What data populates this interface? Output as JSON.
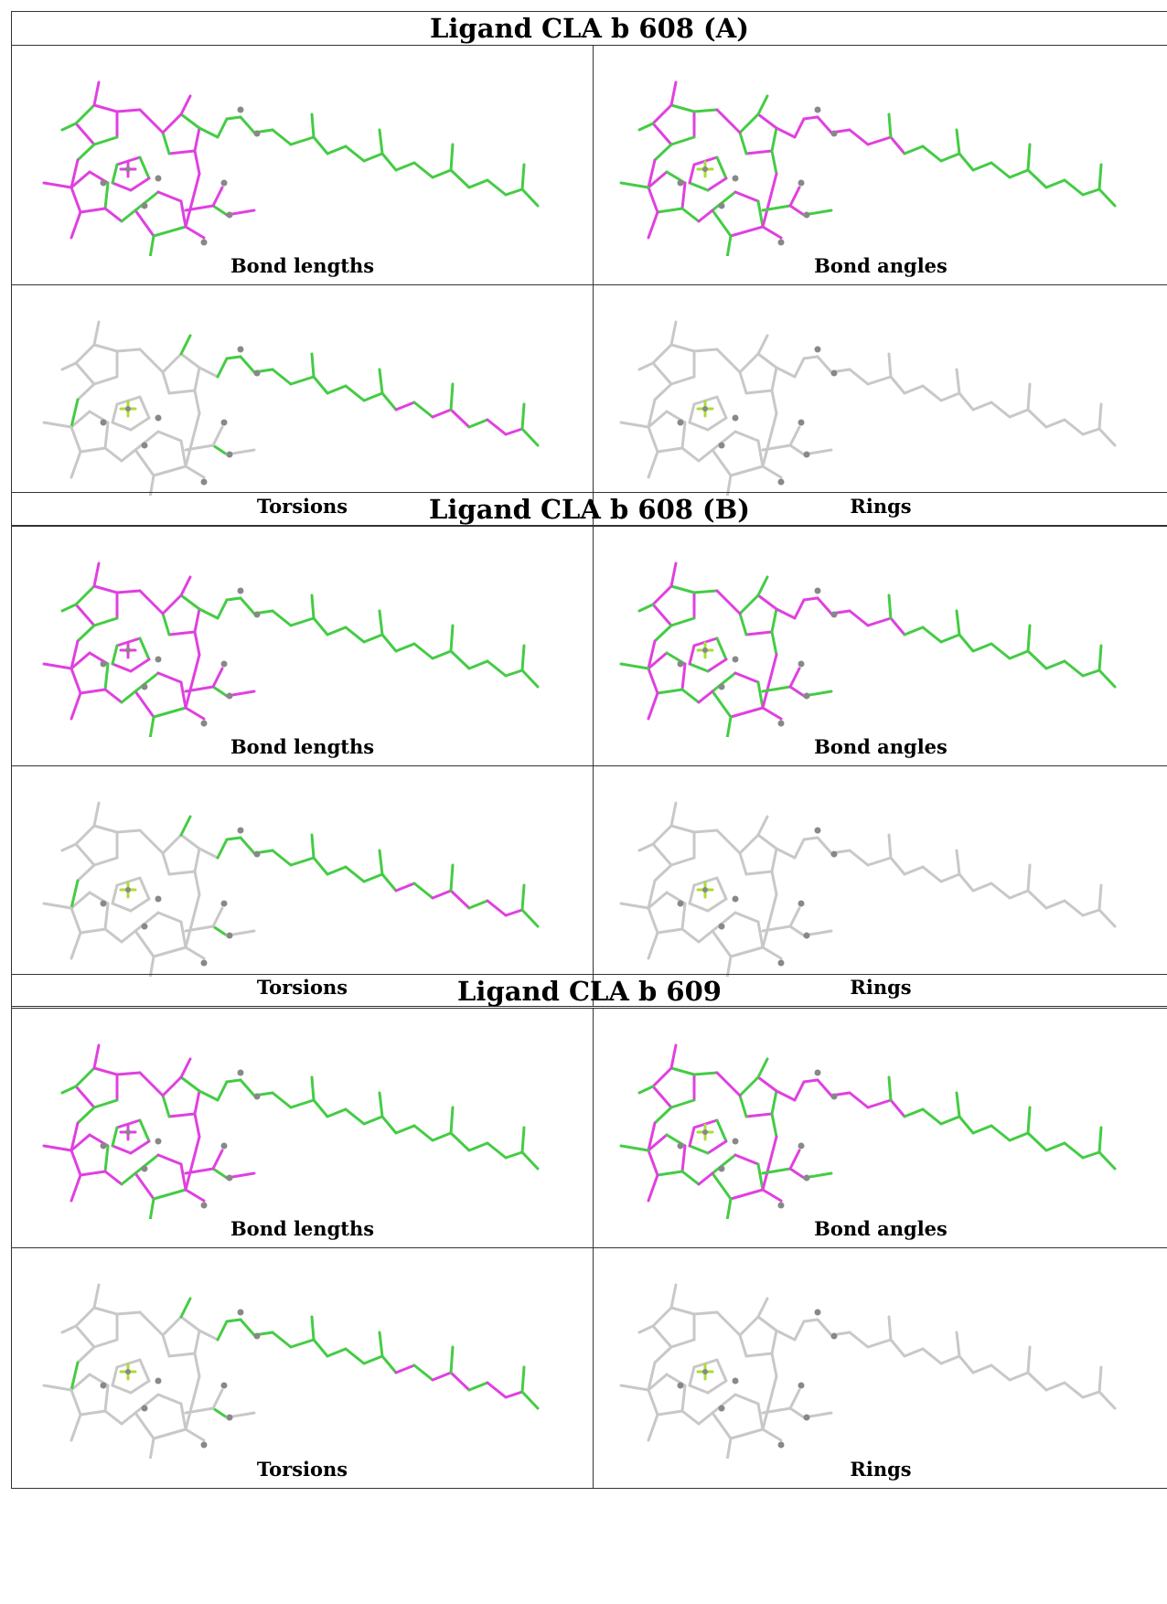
{
  "panels": [
    {
      "title": "Ligand CLA b 608 (A)",
      "captions": [
        "Bond lengths",
        "Bond angles",
        "Torsions",
        "Rings"
      ]
    },
    {
      "title": "Ligand CLA b 608 (B)",
      "captions": [
        "Bond lengths",
        "Bond angles",
        "Torsions",
        "Rings"
      ]
    },
    {
      "title": "Ligand CLA b 609",
      "captions": [
        "Bond lengths",
        "Bond angles",
        "Torsions",
        "Rings"
      ]
    }
  ],
  "colors": {
    "outlier": "#e040e0",
    "acceptable": "#44cc44",
    "neutral": "#c8c8c8",
    "atom": "#888888"
  }
}
